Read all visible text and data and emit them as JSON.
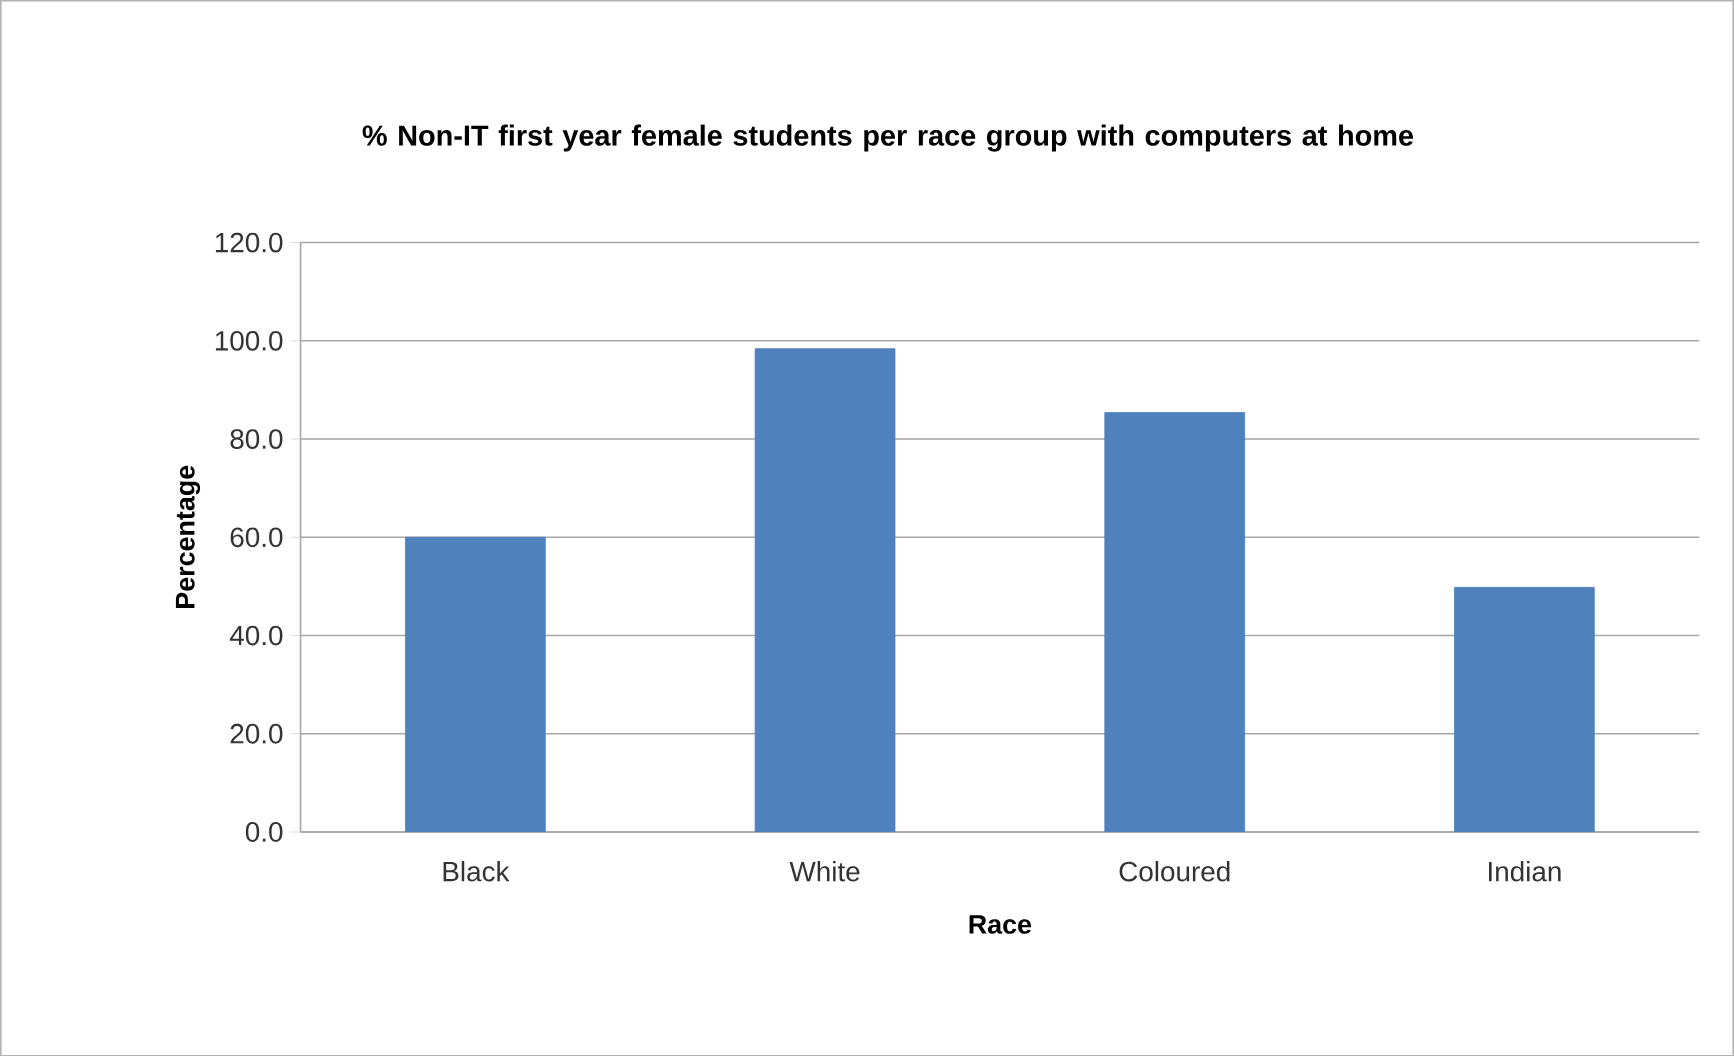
{
  "chart_data": {
    "type": "bar",
    "title": "% Non-IT first year female students per race group with computers at home",
    "xlabel": "Race",
    "ylabel": "Percentage",
    "categories": [
      "Black",
      "White",
      "Coloured",
      "Indian"
    ],
    "values": [
      60.0,
      98.4,
      85.4,
      49.8
    ],
    "color": "#4f81bd",
    "ylim": [
      0,
      120
    ],
    "yticks": [
      {
        "value": 0,
        "label": "0.0"
      },
      {
        "value": 20,
        "label": "20.0"
      },
      {
        "value": 40,
        "label": "40.0"
      },
      {
        "value": 60,
        "label": "60.0"
      },
      {
        "value": 80,
        "label": "80.0"
      },
      {
        "value": 100,
        "label": "100.0"
      },
      {
        "value": 120,
        "label": "120.0"
      }
    ],
    "grid": "y"
  }
}
